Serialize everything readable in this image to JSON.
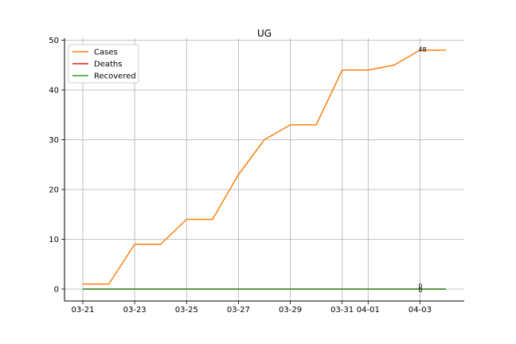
{
  "chart_data": {
    "type": "line",
    "title": "UG",
    "xlabel": "",
    "ylabel": "",
    "x": [
      "03-21",
      "03-22",
      "03-23",
      "03-24",
      "03-25",
      "03-26",
      "03-27",
      "03-28",
      "03-29",
      "03-30",
      "03-31",
      "04-01",
      "04-02",
      "04-03",
      "04-04"
    ],
    "x_tick_labels": [
      "03-21",
      "03-23",
      "03-25",
      "03-27",
      "03-29",
      "03-31",
      "04-01",
      "04-03"
    ],
    "y_ticks": [
      0,
      10,
      20,
      30,
      40,
      50
    ],
    "ylim": [
      -2.4,
      50.4
    ],
    "grid": true,
    "legend": "top-left",
    "series": [
      {
        "name": "Cases",
        "color": "#ff7f0e",
        "values": [
          1,
          1,
          9,
          9,
          14,
          14,
          23,
          30,
          33,
          33,
          44,
          44,
          45,
          48,
          48
        ]
      },
      {
        "name": "Deaths",
        "color": "#d62728",
        "values": [
          0,
          0,
          0,
          0,
          0,
          0,
          0,
          0,
          0,
          0,
          0,
          0,
          0,
          0,
          0
        ]
      },
      {
        "name": "Recovered",
        "color": "#2ca02c",
        "values": [
          0,
          0,
          0,
          0,
          0,
          0,
          0,
          0,
          0,
          0,
          0,
          0,
          0,
          0,
          0
        ]
      }
    ],
    "annotations": [
      {
        "x": "04-03",
        "y": 48,
        "text": "48"
      },
      {
        "x": "04-03",
        "y": 0,
        "text": "0"
      },
      {
        "x": "04-03",
        "y": 0,
        "text": "0"
      }
    ]
  }
}
